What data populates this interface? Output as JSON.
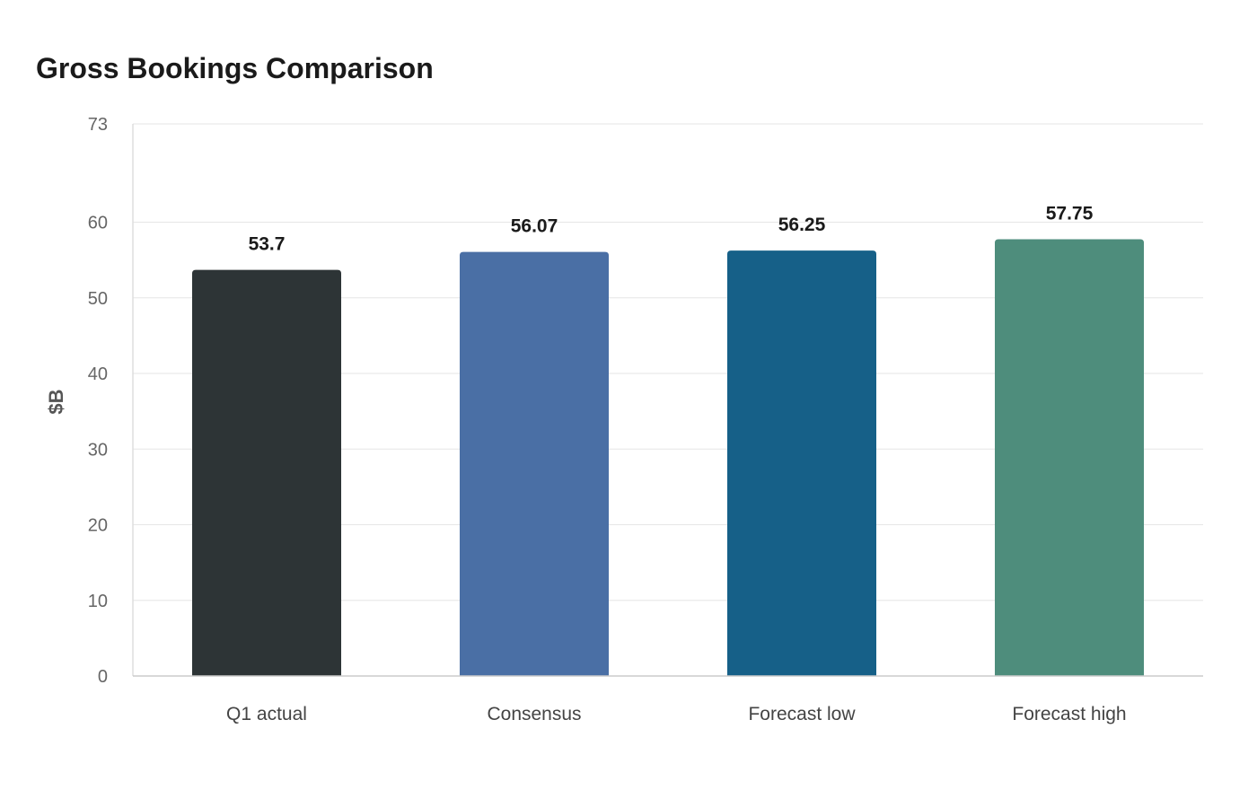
{
  "chart_data": {
    "type": "bar",
    "title": "Gross Bookings Comparison",
    "xlabel": "",
    "ylabel": "$B",
    "categories": [
      "Q1 actual",
      "Consensus",
      "Forecast low",
      "Forecast high"
    ],
    "values": [
      53.7,
      56.07,
      56.25,
      57.75
    ],
    "value_labels": [
      "53.7",
      "56.07",
      "56.25",
      "57.75"
    ],
    "colors": [
      "#2d3436",
      "#4a6fa5",
      "#166088",
      "#4e8d7c"
    ],
    "ylim": [
      0,
      73
    ],
    "yticks": [
      0,
      10,
      20,
      30,
      40,
      50,
      60,
      73
    ],
    "grid": true,
    "legend": "none"
  }
}
